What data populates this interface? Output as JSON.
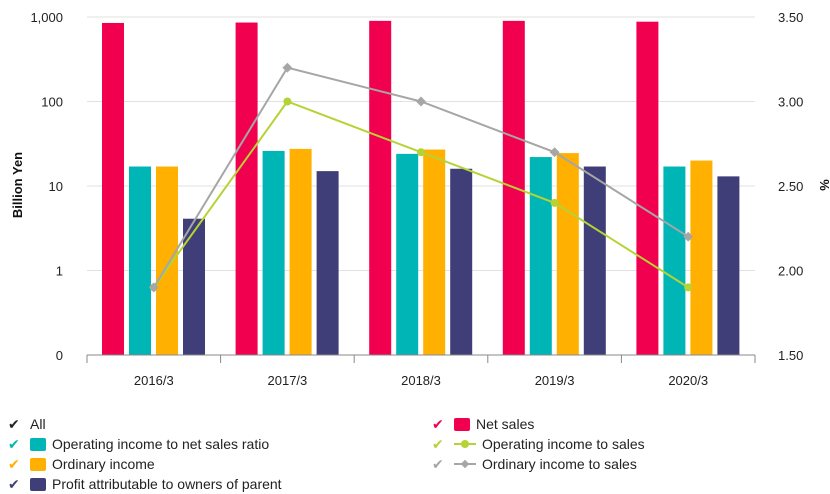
{
  "chart_data": {
    "type": "bar",
    "categories": [
      "2016/3",
      "2017/3",
      "2018/3",
      "2019/3",
      "2020/3"
    ],
    "y_left": {
      "label": "Billion Yen",
      "scale": "log",
      "range": [
        0.1,
        1000
      ],
      "tick_values": [
        0.1,
        1,
        10,
        100,
        1000
      ],
      "tick_labels": [
        "0",
        "1",
        "10",
        "100",
        "1,000"
      ]
    },
    "y_right": {
      "label": "%",
      "range": [
        1.5,
        3.5
      ],
      "tick_values": [
        1.5,
        2.0,
        2.5,
        3.0,
        3.5
      ],
      "tick_labels": [
        "1.50",
        "2.00",
        "2.50",
        "3.00",
        "3.50"
      ]
    },
    "bar_series": [
      {
        "name": "Net sales",
        "color": "#f0004f",
        "values": [
          850,
          860,
          900,
          900,
          880
        ]
      },
      {
        "name": "Operating income to net sales ratio",
        "color": "#00b5b5",
        "values": [
          17,
          26,
          24,
          22,
          17
        ]
      },
      {
        "name": "Ordinary income",
        "color": "#ffb000",
        "values": [
          17,
          27.5,
          27,
          24.5,
          20
        ]
      },
      {
        "name": "Profit attributable to owners of parent",
        "color": "#403e78",
        "values": [
          4.1,
          15,
          16,
          17,
          13
        ]
      }
    ],
    "line_series": [
      {
        "name": "Operating income to sales",
        "color": "#b5d335",
        "marker": "circle",
        "values": [
          1.9,
          3.0,
          2.7,
          2.4,
          1.9
        ]
      },
      {
        "name": "Ordinary income to sales",
        "color": "#a6a6a6",
        "marker": "diamond",
        "values": [
          1.9,
          3.2,
          3.0,
          2.7,
          2.2
        ]
      }
    ],
    "grid": true,
    "legend_position": "bottom"
  },
  "legend": {
    "all_label": "All",
    "all_color": "#111111",
    "items": [
      {
        "label": "Net sales",
        "color": "#f0004f",
        "kind": "bar"
      },
      {
        "label": "Operating income to net sales ratio",
        "color": "#00b5b5",
        "kind": "bar"
      },
      {
        "label": "Operating income to sales",
        "color": "#b5d335",
        "kind": "line",
        "marker": "circle"
      },
      {
        "label": "Ordinary income",
        "color": "#ffb000",
        "kind": "bar"
      },
      {
        "label": "Ordinary income to sales",
        "color": "#a6a6a6",
        "kind": "line",
        "marker": "diamond"
      },
      {
        "label": "Profit attributable to owners of parent",
        "color": "#403e78",
        "kind": "bar"
      }
    ]
  }
}
